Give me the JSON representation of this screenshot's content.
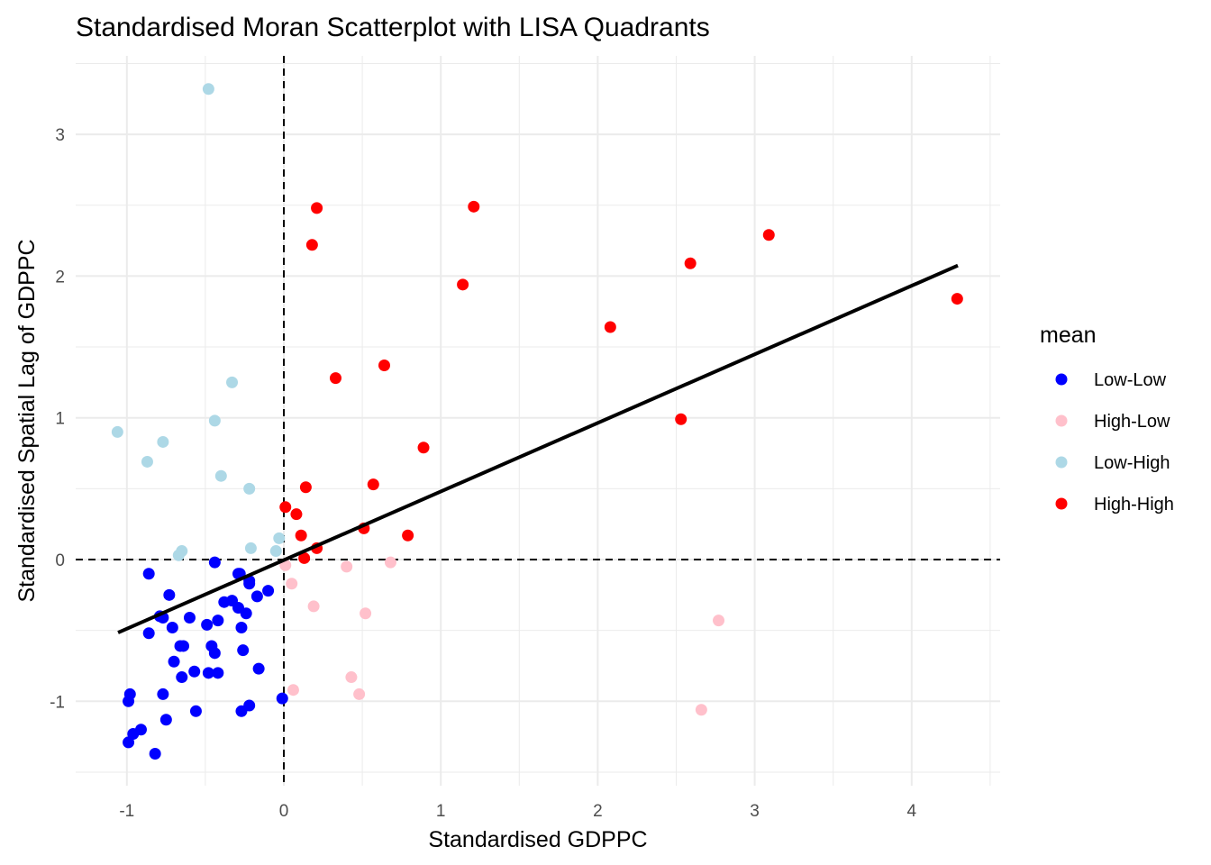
{
  "chart_data": {
    "type": "scatter",
    "title": "Standardised Moran Scatterplot with LISA Quadrants",
    "xlabel": "Standardised GDPPC",
    "ylabel": "Standardised Spatial Lag of GDPPC",
    "xlim": [
      -1.3,
      4.6
    ],
    "ylim": [
      -1.6,
      3.55
    ],
    "x_ticks": [
      -1,
      0,
      1,
      2,
      3,
      4
    ],
    "y_ticks": [
      -1,
      0,
      1,
      2,
      3
    ],
    "x_tick_labels": [
      "-1",
      "0",
      "1",
      "2",
      "3",
      "4"
    ],
    "y_tick_labels": [
      "-1",
      "0",
      "1",
      "2",
      "3"
    ],
    "grid": true,
    "reference_lines": {
      "x": 0,
      "y": 0,
      "style": "dashed"
    },
    "fit_line": {
      "slope": 0.484,
      "intercept": -0.004,
      "x_range": [
        -1.056,
        4.294
      ],
      "color": "#000000"
    },
    "legend": {
      "title": "mean",
      "placement": "right",
      "entries": [
        {
          "label": "Low-Low",
          "color": "#0000ff"
        },
        {
          "label": "High-Low",
          "color": "#ffc0cb"
        },
        {
          "label": "Low-High",
          "color": "#add8e6"
        },
        {
          "label": "High-High",
          "color": "#ff0000"
        }
      ]
    },
    "series": [
      {
        "name": "Low-Low",
        "color": "#0000ff",
        "points": [
          [
            -0.86,
            -0.1
          ],
          [
            -0.73,
            -0.25
          ],
          [
            -0.77,
            -0.41
          ],
          [
            -0.79,
            -0.4
          ],
          [
            -0.6,
            -0.41
          ],
          [
            -0.71,
            -0.48
          ],
          [
            -0.86,
            -0.52
          ],
          [
            -0.66,
            -0.61
          ],
          [
            -0.64,
            -0.61
          ],
          [
            -0.49,
            -0.46
          ],
          [
            -0.44,
            -0.02
          ],
          [
            -0.29,
            -0.1
          ],
          [
            -0.22,
            -0.17
          ],
          [
            -0.1,
            -0.22
          ],
          [
            -0.17,
            -0.26
          ],
          [
            -0.38,
            -0.3
          ],
          [
            -0.33,
            -0.29
          ],
          [
            -0.29,
            -0.34
          ],
          [
            -0.24,
            -0.38
          ],
          [
            -0.42,
            -0.43
          ],
          [
            -0.27,
            -0.48
          ],
          [
            -0.46,
            -0.61
          ],
          [
            -0.44,
            -0.66
          ],
          [
            -0.26,
            -0.64
          ],
          [
            -0.7,
            -0.72
          ],
          [
            -0.65,
            -0.83
          ],
          [
            -0.57,
            -0.79
          ],
          [
            -0.48,
            -0.8
          ],
          [
            -0.42,
            -0.8
          ],
          [
            -0.16,
            -0.77
          ],
          [
            -0.98,
            -0.95
          ],
          [
            -0.99,
            -1.0
          ],
          [
            -0.77,
            -0.95
          ],
          [
            -0.56,
            -1.07
          ],
          [
            -0.75,
            -1.13
          ],
          [
            -0.22,
            -1.03
          ],
          [
            -0.27,
            -1.07
          ],
          [
            -0.01,
            -0.98
          ],
          [
            -0.91,
            -1.2
          ],
          [
            -0.96,
            -1.23
          ],
          [
            -0.99,
            -1.29
          ],
          [
            -0.82,
            -1.37
          ],
          [
            -0.28,
            -0.1
          ],
          [
            -0.22,
            -0.15
          ]
        ]
      },
      {
        "name": "High-Low",
        "color": "#ffc0cb",
        "points": [
          [
            0.01,
            -0.04
          ],
          [
            0.4,
            -0.05
          ],
          [
            0.68,
            -0.02
          ],
          [
            0.05,
            -0.17
          ],
          [
            0.19,
            -0.33
          ],
          [
            0.52,
            -0.38
          ],
          [
            0.06,
            -0.92
          ],
          [
            0.43,
            -0.83
          ],
          [
            0.48,
            -0.95
          ],
          [
            2.77,
            -0.43
          ],
          [
            2.66,
            -1.06
          ]
        ]
      },
      {
        "name": "Low-High",
        "color": "#add8e6",
        "points": [
          [
            -0.48,
            3.32
          ],
          [
            -0.33,
            1.25
          ],
          [
            -0.44,
            0.98
          ],
          [
            -1.06,
            0.9
          ],
          [
            -0.77,
            0.83
          ],
          [
            -0.87,
            0.69
          ],
          [
            -0.4,
            0.59
          ],
          [
            -0.22,
            0.5
          ],
          [
            -0.03,
            0.15
          ],
          [
            -0.21,
            0.08
          ],
          [
            -0.05,
            0.06
          ],
          [
            -0.65,
            0.06
          ],
          [
            -0.67,
            0.03
          ]
        ]
      },
      {
        "name": "High-High",
        "color": "#ff0000",
        "points": [
          [
            0.21,
            2.48
          ],
          [
            1.21,
            2.49
          ],
          [
            0.18,
            2.22
          ],
          [
            1.14,
            1.94
          ],
          [
            0.33,
            1.28
          ],
          [
            0.64,
            1.37
          ],
          [
            0.89,
            0.79
          ],
          [
            0.14,
            0.51
          ],
          [
            0.57,
            0.53
          ],
          [
            0.01,
            0.37
          ],
          [
            0.08,
            0.32
          ],
          [
            0.11,
            0.17
          ],
          [
            0.21,
            0.08
          ],
          [
            0.51,
            0.22
          ],
          [
            0.79,
            0.17
          ],
          [
            0.13,
            0.01
          ],
          [
            2.08,
            1.64
          ],
          [
            2.59,
            2.09
          ],
          [
            3.09,
            2.29
          ],
          [
            2.53,
            0.99
          ],
          [
            4.29,
            1.84
          ]
        ]
      }
    ]
  }
}
